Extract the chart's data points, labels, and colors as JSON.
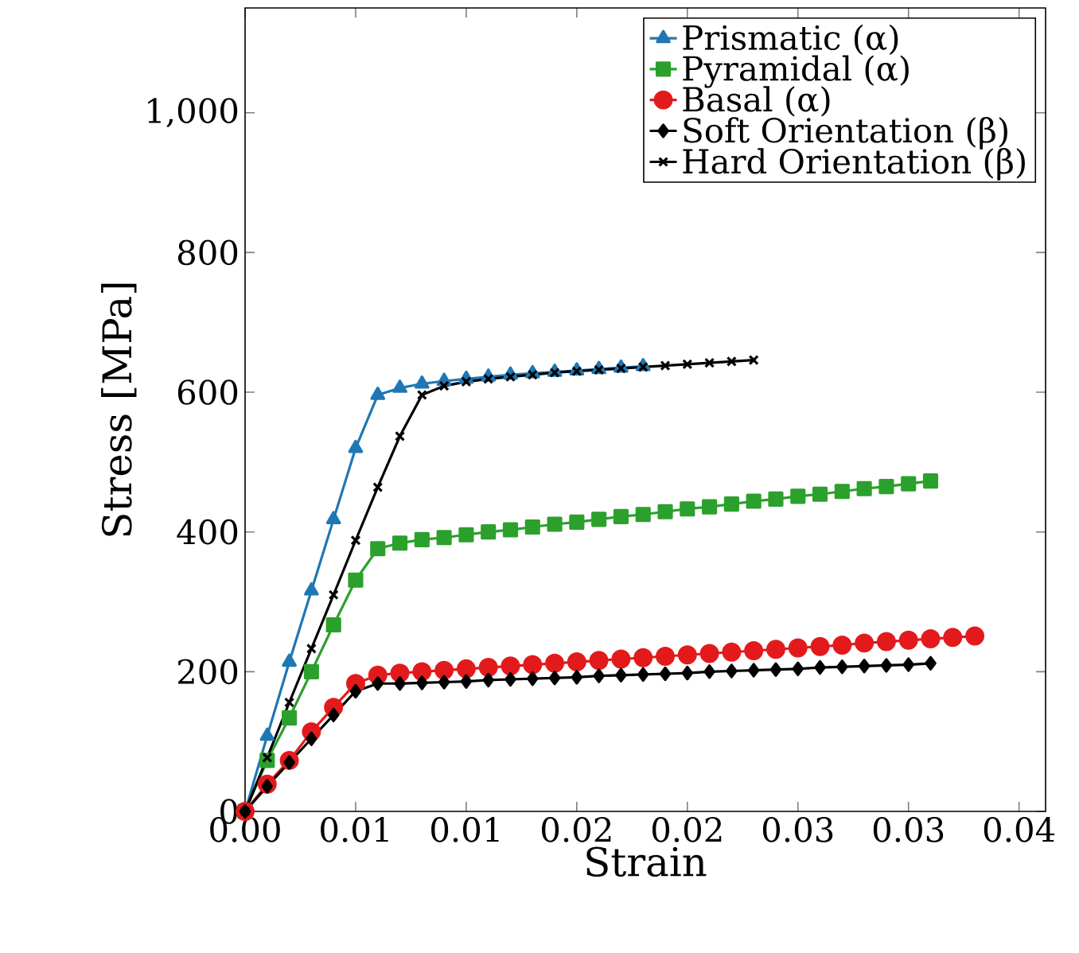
{
  "chart_data": {
    "type": "line",
    "xlabel": "Strain",
    "ylabel": "Stress [MPa]",
    "xlim": [
      0,
      0.0362
    ],
    "ylim": [
      0,
      1150
    ],
    "xticks": [
      {
        "value": 0,
        "label": "0.00"
      },
      {
        "value": 0.005,
        "label": "0.01"
      },
      {
        "value": 0.01,
        "label": "0.01"
      },
      {
        "value": 0.015,
        "label": "0.02"
      },
      {
        "value": 0.02,
        "label": "0.02"
      },
      {
        "value": 0.025,
        "label": "0.03"
      },
      {
        "value": 0.03,
        "label": "0.03"
      },
      {
        "value": 0.035,
        "label": "0.04"
      }
    ],
    "yticks": [
      0,
      200,
      400,
      600,
      800,
      {
        "value": 1000,
        "label": "1,000"
      }
    ],
    "grid": false,
    "legend": "top right",
    "line_style": "solid",
    "series": [
      {
        "name": "Prismatic (α)",
        "color": "#1f77b4",
        "marker": "triangle",
        "x": [
          0,
          0.001,
          0.002,
          0.003,
          0.004,
          0.005,
          0.006,
          0.007,
          0.008,
          0.009,
          0.01,
          0.011,
          0.012,
          0.013,
          0.014,
          0.015,
          0.016,
          0.017,
          0.018
        ],
        "values": [
          0,
          108,
          214,
          316,
          418,
          520,
          596,
          606,
          612,
          616,
          619,
          622,
          625,
          627,
          629,
          631,
          633,
          635,
          637
        ]
      },
      {
        "name": "Pyramidal (α)",
        "color": "#2ca02c",
        "marker": "square",
        "x": [
          0,
          0.001,
          0.002,
          0.003,
          0.004,
          0.005,
          0.006,
          0.007,
          0.008,
          0.009,
          0.01,
          0.011,
          0.012,
          0.013,
          0.014,
          0.015,
          0.016,
          0.017,
          0.018,
          0.019,
          0.02,
          0.021,
          0.022,
          0.023,
          0.024,
          0.025,
          0.026,
          0.027,
          0.028,
          0.029,
          0.03,
          0.031
        ],
        "values": [
          0,
          73,
          134,
          200,
          267,
          331,
          376,
          384,
          389,
          392,
          396,
          400,
          403,
          407,
          411,
          414,
          418,
          422,
          425,
          429,
          433,
          436,
          440,
          444,
          447,
          451,
          454,
          458,
          462,
          465,
          469,
          473
        ]
      },
      {
        "name": "Basal (α)",
        "color": "#e31a1c",
        "marker": "circle",
        "x": [
          0,
          0.001,
          0.002,
          0.003,
          0.004,
          0.005,
          0.006,
          0.007,
          0.008,
          0.009,
          0.01,
          0.011,
          0.012,
          0.013,
          0.014,
          0.015,
          0.016,
          0.017,
          0.018,
          0.019,
          0.02,
          0.021,
          0.022,
          0.023,
          0.024,
          0.025,
          0.026,
          0.027,
          0.028,
          0.029,
          0.03,
          0.031,
          0.032,
          0.033
        ],
        "values": [
          0,
          39,
          73,
          114,
          149,
          183,
          195,
          198,
          200,
          202,
          204,
          206,
          208,
          210,
          212,
          214,
          216,
          218,
          220,
          222,
          224,
          226,
          228,
          230,
          232,
          234,
          236,
          238,
          241,
          243,
          245,
          247,
          249,
          251
        ]
      },
      {
        "name": "Soft Orientation (β)",
        "color": "#000000",
        "marker": "diamond",
        "x": [
          0,
          0.001,
          0.002,
          0.003,
          0.004,
          0.005,
          0.006,
          0.007,
          0.008,
          0.009,
          0.01,
          0.011,
          0.012,
          0.013,
          0.014,
          0.015,
          0.016,
          0.017,
          0.018,
          0.019,
          0.02,
          0.021,
          0.022,
          0.023,
          0.024,
          0.025,
          0.026,
          0.027,
          0.028,
          0.029,
          0.03,
          0.031
        ],
        "values": [
          0,
          36,
          70,
          104,
          138,
          172,
          183,
          183,
          184,
          185,
          186,
          188,
          189,
          190,
          191,
          192,
          194,
          195,
          196,
          197,
          198,
          200,
          201,
          202,
          203,
          204,
          206,
          207,
          208,
          209,
          210,
          212
        ]
      },
      {
        "name": "Hard Orientation (β)",
        "color": "#000000",
        "marker": "cross",
        "x": [
          0,
          0.001,
          0.002,
          0.003,
          0.004,
          0.005,
          0.006,
          0.007,
          0.008,
          0.009,
          0.01,
          0.011,
          0.012,
          0.013,
          0.014,
          0.015,
          0.016,
          0.017,
          0.018,
          0.019,
          0.02,
          0.021,
          0.022,
          0.023
        ],
        "values": [
          0,
          77,
          156,
          233,
          310,
          388,
          464,
          537,
          596,
          609,
          615,
          619,
          622,
          625,
          628,
          630,
          632,
          634,
          636,
          638,
          640,
          642,
          644,
          646
        ]
      }
    ]
  }
}
